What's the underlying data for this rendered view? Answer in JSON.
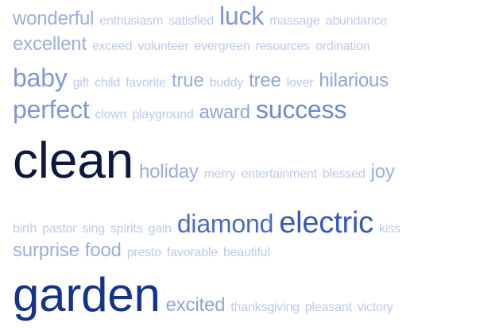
{
  "word_cloud": {
    "lines": [
      {
        "words": [
          {
            "text": "wonderful",
            "weight": 3,
            "color": "#9aaedd"
          },
          {
            "text": "enthusiasm",
            "weight": 1,
            "color": "#bcc9ea"
          },
          {
            "text": "satisfied",
            "weight": 1,
            "color": "#bcc9ea"
          },
          {
            "text": "luck",
            "weight": 5,
            "color": "#7f96d4"
          },
          {
            "text": "massage",
            "weight": 1,
            "color": "#bcc9ea"
          },
          {
            "text": "abundance",
            "weight": 1,
            "color": "#bcc9ea"
          }
        ]
      },
      {
        "words": [
          {
            "text": "excellent",
            "weight": 3,
            "color": "#9aaedd"
          },
          {
            "text": "exceed",
            "weight": 1,
            "color": "#bcc9ea"
          },
          {
            "text": "volunteer",
            "weight": 1,
            "color": "#bcc9ea"
          },
          {
            "text": "evergreen",
            "weight": 1,
            "color": "#bcc9ea"
          },
          {
            "text": "resources",
            "weight": 1,
            "color": "#bcc9ea"
          },
          {
            "text": "ordination",
            "weight": 1,
            "color": "#bcc9ea"
          }
        ]
      },
      {
        "words": [
          {
            "text": "baby",
            "weight": 5,
            "color": "#7f96d4"
          },
          {
            "text": "gift",
            "weight": 1,
            "color": "#bcc9ea"
          },
          {
            "text": "child",
            "weight": 1,
            "color": "#bcc9ea"
          },
          {
            "text": "favorite",
            "weight": 1,
            "color": "#bcc9ea"
          },
          {
            "text": "true",
            "weight": 3,
            "color": "#9aaedd"
          },
          {
            "text": "buddy",
            "weight": 1,
            "color": "#bcc9ea"
          },
          {
            "text": "tree",
            "weight": 3,
            "color": "#8ea4d9"
          },
          {
            "text": "lover",
            "weight": 1,
            "color": "#bcc9ea"
          },
          {
            "text": "hilarious",
            "weight": 3,
            "color": "#8ea4d9"
          }
        ]
      },
      {
        "words": [
          {
            "text": "perfect",
            "weight": 5,
            "color": "#7f96d4"
          },
          {
            "text": "clown",
            "weight": 1,
            "color": "#bcc9ea"
          },
          {
            "text": "playground",
            "weight": 1,
            "color": "#bcc9ea"
          },
          {
            "text": "award",
            "weight": 3,
            "color": "#8ea4d9"
          },
          {
            "text": "success",
            "weight": 5,
            "color": "#6e88cf"
          }
        ]
      },
      {
        "words": [
          {
            "text": "clean",
            "weight": 10,
            "color": "#0b1940"
          },
          {
            "text": "holiday",
            "weight": 3,
            "color": "#9aaedd"
          },
          {
            "text": "merry",
            "weight": 1,
            "color": "#bcc9ea"
          },
          {
            "text": "entertainment",
            "weight": 1,
            "color": "#bcc9ea"
          },
          {
            "text": "blessed",
            "weight": 1,
            "color": "#bcc9ea"
          },
          {
            "text": "joy",
            "weight": 3,
            "color": "#9aaedd"
          }
        ]
      },
      {
        "words": [
          {
            "text": "birth",
            "weight": 1,
            "color": "#bcc9ea"
          },
          {
            "text": "pastor",
            "weight": 1,
            "color": "#bcc9ea"
          },
          {
            "text": "sing",
            "weight": 1,
            "color": "#bcc9ea"
          },
          {
            "text": "spirits",
            "weight": 1,
            "color": "#bcc9ea"
          },
          {
            "text": "gain",
            "weight": 1,
            "color": "#bcc9ea"
          },
          {
            "text": "diamond",
            "weight": 5,
            "color": "#4a6ac4"
          },
          {
            "text": "electric",
            "weight": 6,
            "color": "#3558ba"
          },
          {
            "text": "kiss",
            "weight": 1,
            "color": "#bcc9ea"
          }
        ]
      },
      {
        "words": [
          {
            "text": "surprise",
            "weight": 3,
            "color": "#9aaedd"
          },
          {
            "text": "food",
            "weight": 3,
            "color": "#9aaedd"
          },
          {
            "text": "presto",
            "weight": 1,
            "color": "#bcc9ea"
          },
          {
            "text": "favorable",
            "weight": 1,
            "color": "#bcc9ea"
          },
          {
            "text": "beautiful",
            "weight": 1,
            "color": "#bcc9ea"
          }
        ]
      },
      {
        "words": [
          {
            "text": "garden",
            "weight": 9,
            "color": "#163389"
          },
          {
            "text": "excited",
            "weight": 3,
            "color": "#8ea4d9"
          },
          {
            "text": "thanksgiving",
            "weight": 1,
            "color": "#bcc9ea"
          },
          {
            "text": "pleasant",
            "weight": 1,
            "color": "#bcc9ea"
          },
          {
            "text": "victory",
            "weight": 1,
            "color": "#bcc9ea"
          }
        ]
      }
    ]
  }
}
